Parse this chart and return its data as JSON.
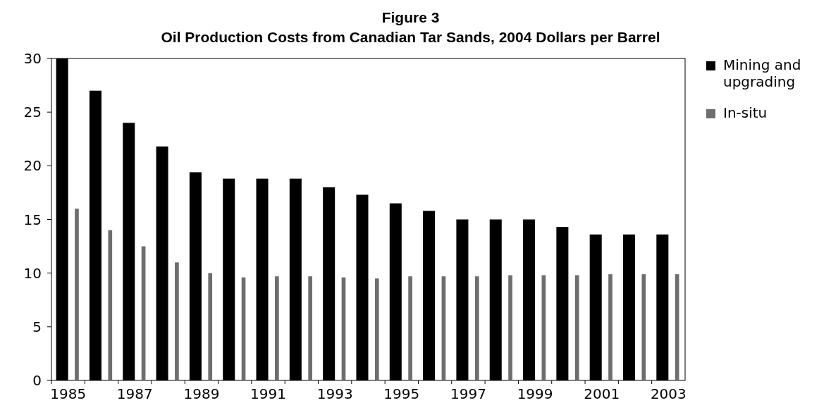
{
  "chart_data": {
    "type": "bar",
    "title": "Figure 3",
    "subtitle": "Oil Production Costs from Canadian Tar Sands, 2004 Dollars per Barrel",
    "categories": [
      "1985",
      null,
      "1987",
      null,
      "1989",
      null,
      "1991",
      null,
      "1993",
      null,
      "1995",
      null,
      "1997",
      null,
      "1999",
      null,
      "2001",
      null,
      "2003"
    ],
    "series": [
      {
        "name": "Mining and upgrading",
        "color": "#000000",
        "values": [
          30,
          27,
          24,
          21.8,
          19.4,
          18.8,
          18.8,
          18.8,
          18,
          17.3,
          16.5,
          15.8,
          15,
          15,
          15,
          14.3,
          13.6,
          13.6,
          13.6
        ]
      },
      {
        "name": "In-situ",
        "color": "#6e6e6e",
        "values": [
          16,
          14,
          12.5,
          11,
          10,
          9.6,
          9.7,
          9.7,
          9.6,
          9.5,
          9.7,
          9.7,
          9.7,
          9.8,
          9.8,
          9.8,
          9.9,
          9.9,
          9.9
        ]
      }
    ],
    "ylim": [
      0,
      30
    ],
    "yticks": [
      0,
      5,
      10,
      15,
      20,
      25,
      30
    ],
    "legend": "right"
  }
}
